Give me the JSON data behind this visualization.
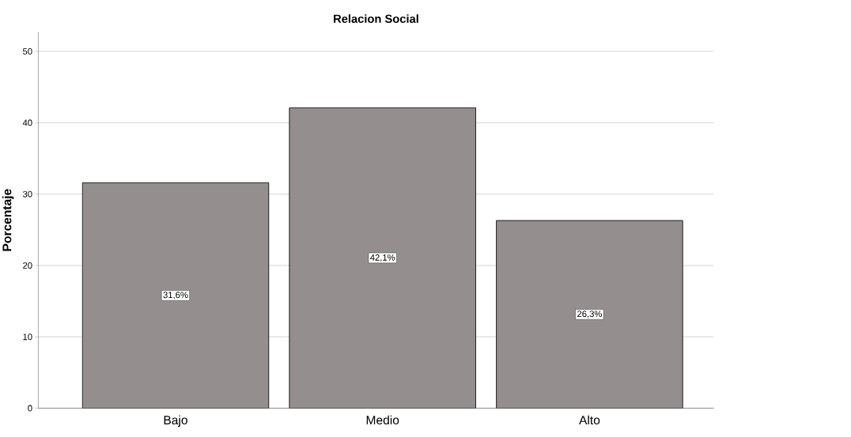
{
  "chart_data": {
    "type": "bar",
    "title": "Relacion Social",
    "ylabel": "Porcentaje",
    "categories": [
      "Bajo",
      "Medio",
      "Alto"
    ],
    "values": [
      31.6,
      42.1,
      26.3
    ],
    "value_labels": [
      "31,6%",
      "42,1%",
      "26,3%"
    ],
    "color": "#948f8e",
    "ylim": [
      0,
      52.7
    ],
    "yticks": [
      0,
      10,
      20,
      30,
      40,
      50
    ],
    "grid": "y"
  }
}
